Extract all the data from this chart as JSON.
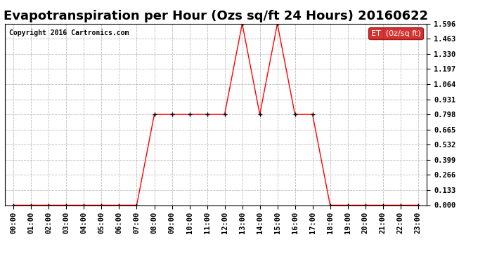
{
  "title": "Evapotranspiration per Hour (Ozs sq/ft 24 Hours) 20160622",
  "copyright": "Copyright 2016 Cartronics.com",
  "legend_label": "ET  (0z/sq ft)",
  "hours": [
    0,
    1,
    2,
    3,
    4,
    5,
    6,
    7,
    8,
    9,
    10,
    11,
    12,
    13,
    14,
    15,
    16,
    17,
    18,
    19,
    20,
    21,
    22,
    23
  ],
  "values": [
    0.0,
    0.0,
    0.0,
    0.0,
    0.0,
    0.0,
    0.0,
    0.0,
    0.798,
    0.798,
    0.798,
    0.798,
    0.798,
    1.596,
    0.798,
    1.596,
    0.798,
    0.798,
    0.0,
    0.0,
    0.0,
    0.0,
    0.0,
    0.0
  ],
  "yticks": [
    0.0,
    0.133,
    0.266,
    0.399,
    0.532,
    0.665,
    0.798,
    0.931,
    1.064,
    1.197,
    1.33,
    1.463,
    1.596
  ],
  "ylim": [
    0.0,
    1.596
  ],
  "line_color": "#ff0000",
  "marker": "+",
  "marker_color": "#000000",
  "bg_color": "#ffffff",
  "grid_color": "#bbbbbb",
  "title_fontsize": 13,
  "tick_fontsize": 7.5,
  "copyright_fontsize": 7,
  "legend_bg": "#cc0000",
  "legend_text_color": "#ffffff",
  "legend_fontsize": 8
}
